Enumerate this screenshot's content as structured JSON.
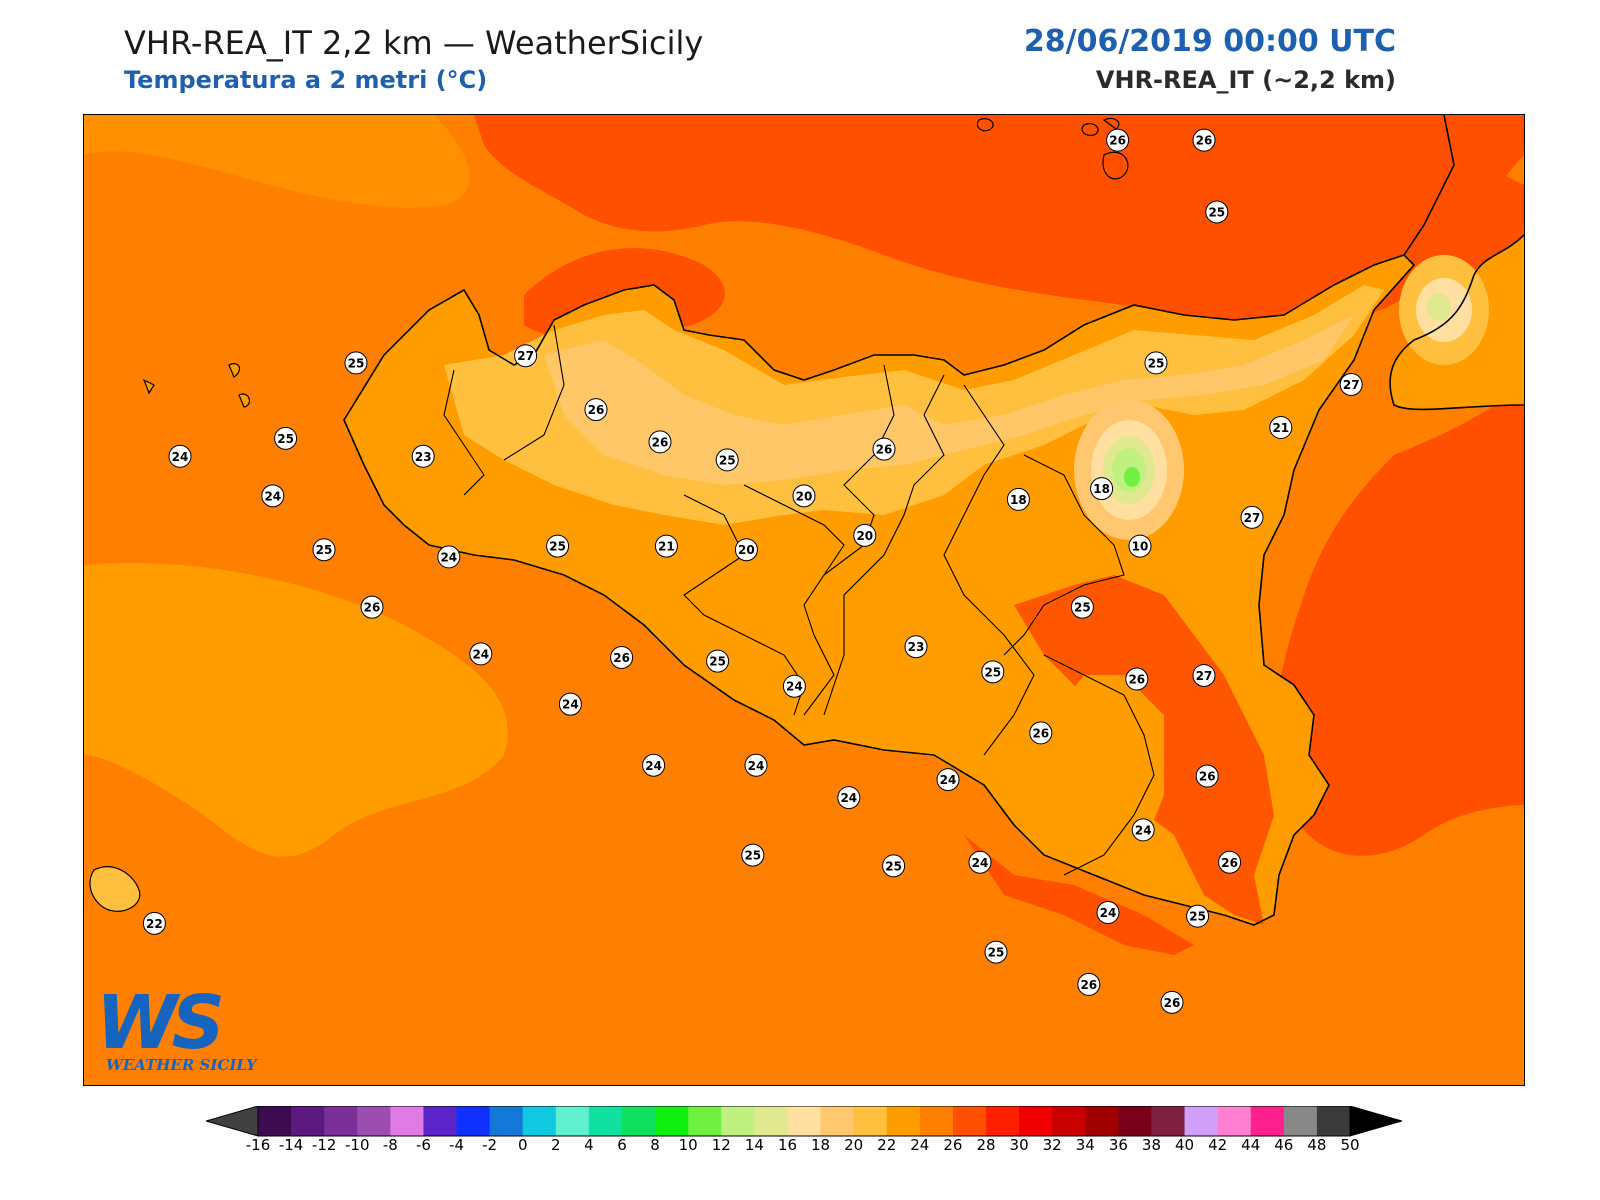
{
  "header": {
    "title": "VHR-REA_IT 2,2 km — WeatherSicily",
    "subtitle": "Temperatura a 2 metri (°C)",
    "datetime": "28/06/2019 00:00 UTC",
    "model": "VHR-REA_IT (~2,2 km)"
  },
  "logo": {
    "mark": "WS",
    "text": "WEATHER SICILY"
  },
  "map": {
    "region": "Sicily",
    "field": "2 m temperature",
    "stations": [
      {
        "v": "26",
        "lon": 14.93,
        "lat": 38.98
      },
      {
        "v": "26",
        "lon": 15.2,
        "lat": 38.98
      },
      {
        "v": "25",
        "lon": 15.24,
        "lat": 38.78
      },
      {
        "v": "25",
        "lon": 12.55,
        "lat": 38.36
      },
      {
        "v": "27",
        "lon": 13.08,
        "lat": 38.38
      },
      {
        "v": "26",
        "lon": 13.3,
        "lat": 38.23
      },
      {
        "v": "25",
        "lon": 15.05,
        "lat": 38.36
      },
      {
        "v": "27",
        "lon": 15.66,
        "lat": 38.3
      },
      {
        "v": "24",
        "lon": 12.0,
        "lat": 38.1
      },
      {
        "v": "25",
        "lon": 12.33,
        "lat": 38.15
      },
      {
        "v": "23",
        "lon": 12.76,
        "lat": 38.1
      },
      {
        "v": "26",
        "lon": 13.5,
        "lat": 38.14
      },
      {
        "v": "25",
        "lon": 13.71,
        "lat": 38.09
      },
      {
        "v": "26",
        "lon": 14.2,
        "lat": 38.12
      },
      {
        "v": "21",
        "lon": 15.44,
        "lat": 38.18
      },
      {
        "v": "24",
        "lon": 12.29,
        "lat": 37.99
      },
      {
        "v": "20",
        "lon": 13.95,
        "lat": 37.99
      },
      {
        "v": "18",
        "lon": 14.62,
        "lat": 37.98
      },
      {
        "v": "18",
        "lon": 14.88,
        "lat": 38.01
      },
      {
        "v": "25",
        "lon": 12.45,
        "lat": 37.84
      },
      {
        "v": "24",
        "lon": 12.84,
        "lat": 37.82
      },
      {
        "v": "25",
        "lon": 13.18,
        "lat": 37.85
      },
      {
        "v": "21",
        "lon": 13.52,
        "lat": 37.85
      },
      {
        "v": "20",
        "lon": 13.77,
        "lat": 37.84
      },
      {
        "v": "20",
        "lon": 14.14,
        "lat": 37.88
      },
      {
        "v": "10",
        "lon": 15.0,
        "lat": 37.85
      },
      {
        "v": "27",
        "lon": 15.35,
        "lat": 37.93
      },
      {
        "v": "26",
        "lon": 12.6,
        "lat": 37.68
      },
      {
        "v": "25",
        "lon": 14.82,
        "lat": 37.68
      },
      {
        "v": "24",
        "lon": 12.94,
        "lat": 37.55
      },
      {
        "v": "26",
        "lon": 13.38,
        "lat": 37.54
      },
      {
        "v": "25",
        "lon": 13.68,
        "lat": 37.53
      },
      {
        "v": "23",
        "lon": 14.3,
        "lat": 37.57
      },
      {
        "v": "25",
        "lon": 14.54,
        "lat": 37.5
      },
      {
        "v": "26",
        "lon": 14.99,
        "lat": 37.48
      },
      {
        "v": "27",
        "lon": 15.2,
        "lat": 37.49
      },
      {
        "v": "24",
        "lon": 13.22,
        "lat": 37.41
      },
      {
        "v": "24",
        "lon": 13.92,
        "lat": 37.46
      },
      {
        "v": "26",
        "lon": 14.69,
        "lat": 37.33
      },
      {
        "v": "24",
        "lon": 13.48,
        "lat": 37.24
      },
      {
        "v": "24",
        "lon": 13.8,
        "lat": 37.24
      },
      {
        "v": "24",
        "lon": 14.09,
        "lat": 37.15
      },
      {
        "v": "24",
        "lon": 14.4,
        "lat": 37.2
      },
      {
        "v": "26",
        "lon": 15.21,
        "lat": 37.21
      },
      {
        "v": "24",
        "lon": 15.01,
        "lat": 37.06
      },
      {
        "v": "25",
        "lon": 13.79,
        "lat": 36.99
      },
      {
        "v": "25",
        "lon": 14.23,
        "lat": 36.96
      },
      {
        "v": "24",
        "lon": 14.5,
        "lat": 36.97
      },
      {
        "v": "26",
        "lon": 15.28,
        "lat": 36.97
      },
      {
        "v": "24",
        "lon": 14.9,
        "lat": 36.83
      },
      {
        "v": "25",
        "lon": 15.18,
        "lat": 36.82
      },
      {
        "v": "25",
        "lon": 14.55,
        "lat": 36.72
      },
      {
        "v": "26",
        "lon": 14.84,
        "lat": 36.63
      },
      {
        "v": "26",
        "lon": 15.1,
        "lat": 36.58
      },
      {
        "v": "22",
        "lon": 11.92,
        "lat": 36.8
      }
    ]
  },
  "colorbar": {
    "unit": "°C",
    "ticks": [
      "-16",
      "-14",
      "-12",
      "-10",
      "-8",
      "-6",
      "-4",
      "-2",
      "0",
      "2",
      "4",
      "6",
      "8",
      "10",
      "12",
      "14",
      "16",
      "18",
      "20",
      "22",
      "24",
      "26",
      "28",
      "30",
      "32",
      "34",
      "36",
      "38",
      "40",
      "42",
      "44",
      "46",
      "48",
      "50"
    ],
    "colors": [
      "#3d0b4f",
      "#5c1a80",
      "#7a3096",
      "#9b4db0",
      "#e07be6",
      "#5b25c9",
      "#1030ff",
      "#1478d8",
      "#10c8e0",
      "#60f0d0",
      "#10e0a0",
      "#10e060",
      "#10f010",
      "#70f040",
      "#c0f080",
      "#e0e890",
      "#ffe0a0",
      "#ffc870",
      "#ffc040",
      "#ff9c00",
      "#ff8000",
      "#ff5000",
      "#ff2000",
      "#f00000",
      "#c80000",
      "#a00000",
      "#780018",
      "#802040",
      "#d0a0f8",
      "#ff80d0",
      "#ff2090",
      "#888888",
      "#3a3a3a"
    ],
    "under_color": "#404040",
    "over_color": "#000000"
  }
}
